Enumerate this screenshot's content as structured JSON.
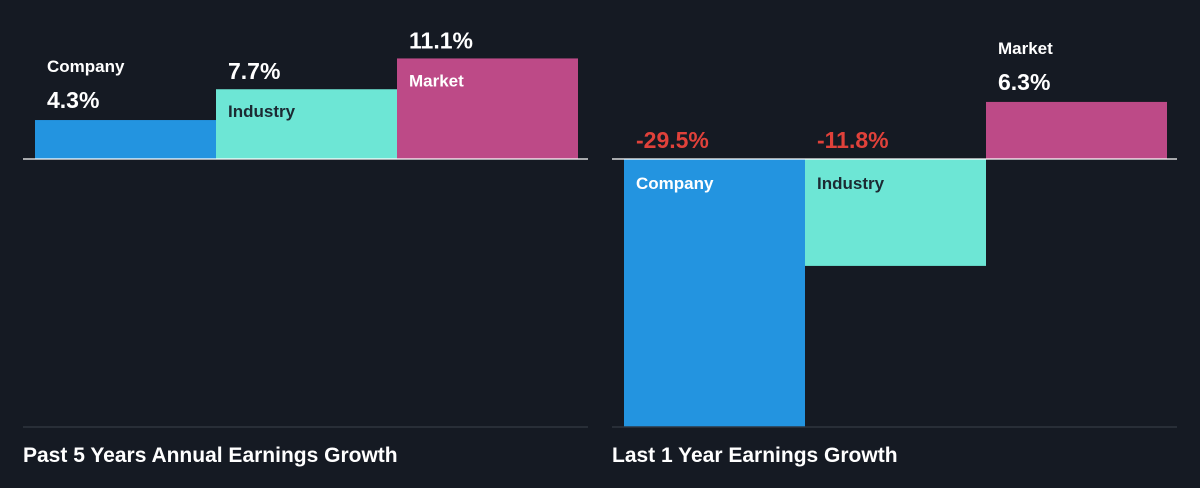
{
  "colors": {
    "background": "#151a23",
    "company": "#2394e0",
    "industry": "#6de6d5",
    "market": "#bd4a87",
    "positive_text": "#ffffff",
    "negative_text": "#e0413a",
    "bar_label_light": "#ffffff",
    "bar_label_dark": "#1c2a33"
  },
  "chart_data": [
    {
      "type": "bar",
      "title": "Past 5 Years Annual Earnings Growth",
      "categories": [
        "Company",
        "Industry",
        "Market"
      ],
      "values": [
        4.3,
        7.7,
        11.1
      ],
      "value_labels": [
        "4.3%",
        "7.7%",
        "11.1%"
      ],
      "unit": "%",
      "grid": false
    },
    {
      "type": "bar",
      "title": "Last 1 Year Earnings Growth",
      "categories": [
        "Company",
        "Industry",
        "Market"
      ],
      "values": [
        -29.5,
        -11.8,
        6.3
      ],
      "value_labels": [
        "-29.5%",
        "-11.8%",
        "6.3%"
      ],
      "unit": "%",
      "grid": false
    }
  ]
}
